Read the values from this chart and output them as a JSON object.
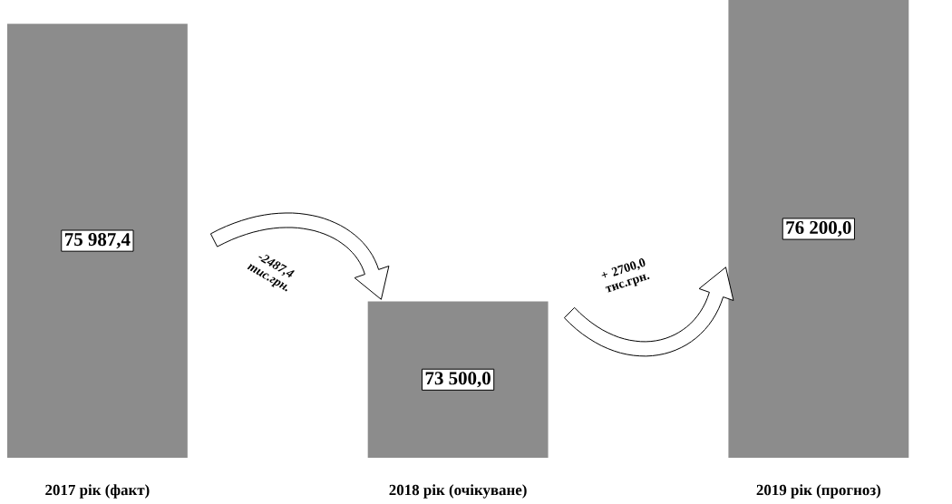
{
  "chart_data": {
    "type": "bar",
    "categories": [
      "2017 рік (факт)",
      "2018 рік (очікуване)",
      "2019 рік (прогноз)"
    ],
    "values": [
      75987.4,
      73500.0,
      76200.0
    ],
    "value_labels": [
      "75 987,4",
      "73 500,0",
      "76 200,0"
    ],
    "color": "#8c8c8c",
    "ylim": [
      72100,
      76200
    ],
    "tick_labels": "x",
    "annotations": [
      "-2487,4 тис.грн.",
      "+ 2700,0 тис.грн."
    ]
  }
}
